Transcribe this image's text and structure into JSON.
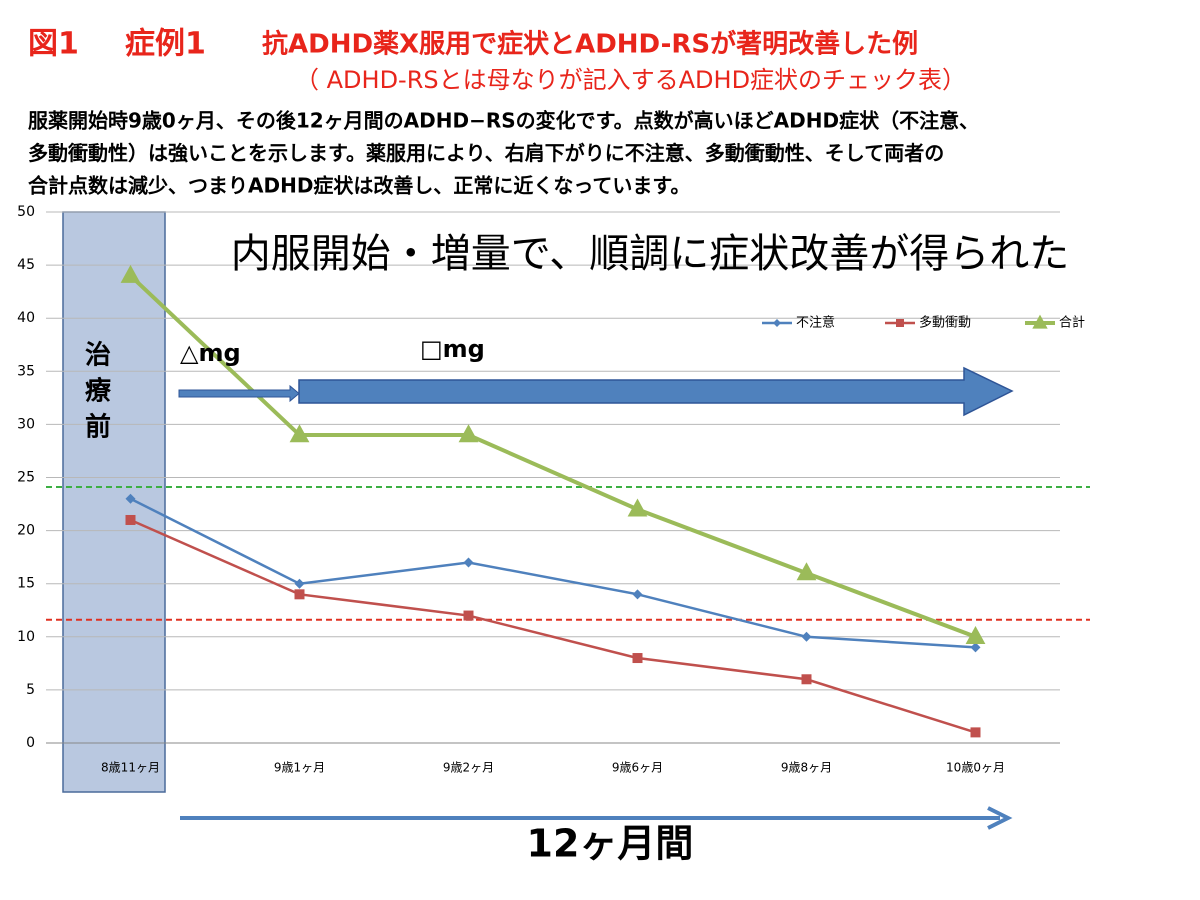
{
  "chart_data": {
    "type": "line",
    "figure_label": "図1",
    "case_label": "症例1",
    "title": "抗ADHD薬X服用で症状とADHD-RSが著明改善した例",
    "subtitle": "（ ADHD-RSとは母なりが記入するADHD症状のチェック表）",
    "description": [
      "服薬開始時9歳0ヶ月、その後12ヶ月間のADHD−RSの変化です。点数が高いほどADHD症状（不注意、",
      "多動衝動性）は強いことを示します。薬服用により、右肩下がりに不注意、多動衝動性、そして両者の",
      "合計点数は減少、つまりADHD症状は改善し、正常に近くなっています。"
    ],
    "headline": "内服開始・増量で、順調に症状改善が得られた",
    "pretreatment_label": "治療前",
    "dose1_label": "△mg",
    "dose2_label": "□mg",
    "period_label": "12ヶ月間",
    "categories": [
      "8歳11ヶ月",
      "9歳1ヶ月",
      "9歳2ヶ月",
      "9歳6ヶ月",
      "9歳8ヶ月",
      "10歳0ヶ月"
    ],
    "series": [
      {
        "name": "不注意",
        "color": "#4f81bd",
        "marker": "diamond",
        "values": [
          23,
          15,
          17,
          14,
          10,
          9
        ]
      },
      {
        "name": "多動衝動",
        "color": "#c0504d",
        "marker": "square",
        "values": [
          21,
          14,
          12,
          8,
          6,
          1
        ]
      },
      {
        "name": "合計",
        "color": "#9bbb59",
        "marker": "triangle",
        "values": [
          44,
          29,
          29,
          22,
          16,
          10
        ]
      }
    ],
    "reference_lines": [
      {
        "value": 24.1,
        "color": "#3cb043"
      },
      {
        "value": 11.6,
        "color": "#e03020"
      }
    ],
    "ylim": [
      0,
      50
    ],
    "yticks": [
      0,
      5,
      10,
      15,
      20,
      25,
      30,
      35,
      40,
      45,
      50
    ],
    "grid": true,
    "legend": "top-right"
  }
}
